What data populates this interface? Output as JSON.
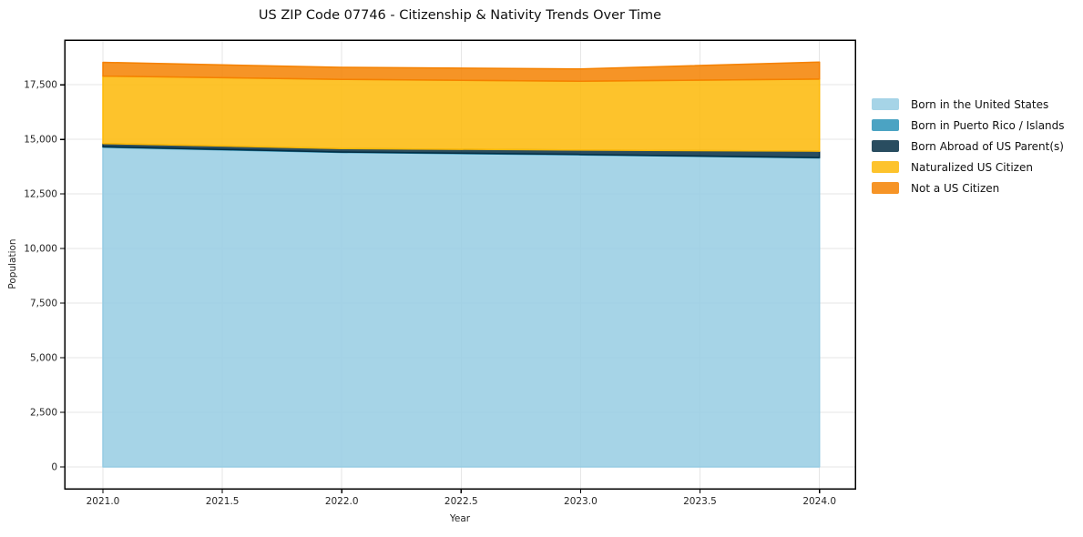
{
  "figure": {
    "title": "US ZIP Code 07746 - Citizenship & Nativity Trends Over Time",
    "xlabel": "Year",
    "ylabel": "Population"
  },
  "chart_data": {
    "type": "area",
    "stacked": true,
    "title": "US ZIP Code 07746 - Citizenship & Nativity Trends Over Time",
    "xlabel": "Year",
    "ylabel": "Population",
    "x": [
      2021,
      2022,
      2023,
      2024
    ],
    "series": [
      {
        "id": "born-in-us",
        "name": "Born in the United States",
        "color": "#96CCE3",
        "values": [
          14640,
          14400,
          14290,
          14150
        ]
      },
      {
        "id": "puerto-rico-islands",
        "name": "Born in Puerto Rico / Islands",
        "color": "#2B93B8",
        "values": [
          20,
          20,
          20,
          20
        ]
      },
      {
        "id": "born-abroad",
        "name": "Born Abroad of US Parent(s)",
        "color": "#042E44",
        "values": [
          150,
          160,
          200,
          290
        ]
      },
      {
        "id": "naturalized",
        "name": "Naturalized US Citizen",
        "color": "#FDB907",
        "values": [
          3090,
          3170,
          3150,
          3300
        ]
      },
      {
        "id": "not-citizen",
        "name": "Not a US Citizen",
        "color": "#F58100",
        "values": [
          630,
          550,
          570,
          780
        ]
      }
    ],
    "totals": [
      18530,
      18300,
      18230,
      18540
    ],
    "xlim": [
      2020.84,
      2024.15
    ],
    "ylim": [
      -1000,
      19550
    ],
    "xticks": {
      "values": [
        2021.0,
        2021.5,
        2022.0,
        2022.5,
        2023.0,
        2023.5,
        2024.0
      ],
      "labels": [
        "2021.0",
        "2021.5",
        "2022.0",
        "2022.5",
        "2023.0",
        "2023.5",
        "2024.0"
      ]
    },
    "yticks": {
      "values": [
        0,
        2500,
        5000,
        7500,
        10000,
        12500,
        15000,
        17500
      ],
      "labels": [
        "0",
        "2,500",
        "5,000",
        "7,500",
        "10,000",
        "12,500",
        "15,000",
        "17,500"
      ]
    },
    "grid": true,
    "grid_color": "#e6e6e6",
    "fill_alpha": 0.85,
    "legend_position": "outside-right"
  }
}
